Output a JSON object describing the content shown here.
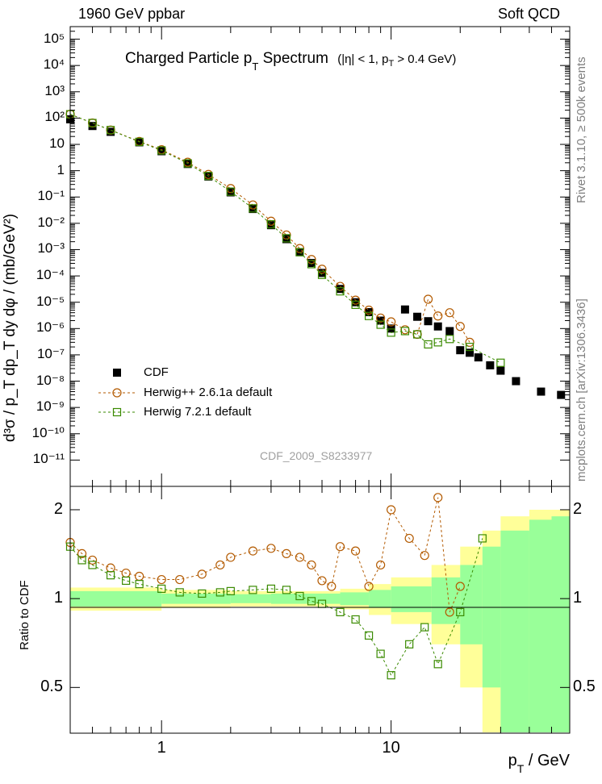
{
  "header": {
    "left": "1960 GeV ppbar",
    "right": "Soft QCD"
  },
  "side_labels": {
    "rivet": "Rivet 3.1.10, ≥ 500k events",
    "mcplots": "mcplots.cern.ch [arXiv:1306.3436]"
  },
  "colors": {
    "cdf": "#000000",
    "herwigpp": "#b35a00",
    "herwig7": "#3a8a00",
    "band_inner": "#99ff99",
    "band_outer": "#ffff99",
    "watermark": "#a0a0a0"
  },
  "chart_data": [
    {
      "type": "scatter",
      "title": "Charged Particle p_T Spectrum",
      "title_parts": {
        "main": "Charged Particle p",
        "sub": "T",
        "after": " Spectrum",
        "cut_a": "(|η| < 1, p",
        "cut_sub": "T",
        "cut_b": " > 0.4 GeV)"
      },
      "watermark": "CDF_2009_S8233977",
      "ylabel": "d³σ / p_T dp_T dy dφ / (mb/GeV²)",
      "xscale": "log",
      "yscale": "log",
      "xlim": [
        0.4,
        60
      ],
      "ylim": [
        1e-12,
        300000
      ],
      "ytick_exponents": [
        -11,
        -10,
        -9,
        -8,
        -7,
        -6,
        -5,
        -4,
        -3,
        -2,
        -1,
        0,
        1,
        2,
        3,
        4,
        5
      ],
      "ytick_labels": [
        "10⁻¹¹",
        "10⁻¹⁰",
        "10⁻⁹",
        "10⁻⁸",
        "10⁻⁷",
        "10⁻⁶",
        "10⁻⁵",
        "10⁻⁴",
        "10⁻³",
        "10⁻²",
        "10⁻¹",
        "1",
        "10",
        "10²",
        "10³",
        "10⁴",
        "10⁵"
      ],
      "legend": [
        {
          "label": "CDF",
          "marker": "filled-square"
        },
        {
          "label": "Herwig++ 2.6.1a default",
          "marker": "open-circle"
        },
        {
          "label": "Herwig 7.2.1 default",
          "marker": "open-square"
        }
      ],
      "series": [
        {
          "name": "CDF",
          "x": [
            0.4,
            0.5,
            0.6,
            0.8,
            1.0,
            1.3,
            1.6,
            2.0,
            2.5,
            3.0,
            3.5,
            4.0,
            4.5,
            5.0,
            6.0,
            7.0,
            8.0,
            9.0,
            10.0,
            11.5,
            13.0,
            14.5,
            16.0,
            18.0,
            20.0,
            22.0,
            24.0,
            27.0,
            30.0,
            35.0,
            45.0,
            55.0
          ],
          "y": [
            90,
            50,
            30,
            12,
            5.5,
            1.8,
            0.6,
            0.15,
            0.035,
            0.0085,
            0.0025,
            0.0008,
            0.00031,
            0.00013,
            3.2e-05,
            1e-05,
            4.2e-06,
            2e-06,
            1e-06,
            5.3e-06,
            2.8e-06,
            1.9e-06,
            1.2e-06,
            8e-07,
            1.5e-07,
            1.2e-07,
            8e-08,
            4e-08,
            2.5e-08,
            1e-08,
            4e-09,
            3e-09
          ]
        },
        {
          "name": "Herwig++ 2.6.1a default",
          "x": [
            0.4,
            0.5,
            0.6,
            0.8,
            1.0,
            1.3,
            1.6,
            2.0,
            2.5,
            3.0,
            3.5,
            4.0,
            4.5,
            5.0,
            6.0,
            7.0,
            8.0,
            9.0,
            10.0,
            11.5,
            13.0,
            14.5,
            16.0,
            18.0,
            20.0,
            22.0
          ],
          "y": [
            140,
            65,
            35,
            13,
            6.3,
            2.1,
            0.72,
            0.21,
            0.05,
            0.012,
            0.0036,
            0.0011,
            0.00042,
            0.00018,
            4e-05,
            1.2e-05,
            5e-06,
            2.5e-06,
            1.8e-06,
            9e-07,
            6e-07,
            1.3e-05,
            3e-06,
            4e-06,
            1.2e-06,
            3e-07
          ]
        },
        {
          "name": "Herwig 7.2.1 default",
          "x": [
            0.4,
            0.5,
            0.6,
            0.8,
            1.0,
            1.3,
            1.6,
            2.0,
            2.5,
            3.0,
            3.5,
            4.0,
            4.5,
            5.0,
            6.0,
            7.0,
            8.0,
            9.0,
            10.0,
            11.5,
            13.0,
            14.5,
            16.0,
            18.0,
            22.0,
            30.0
          ],
          "y": [
            140,
            65,
            35,
            12.5,
            5.9,
            1.9,
            0.63,
            0.16,
            0.037,
            0.0092,
            0.0027,
            0.0008,
            0.00028,
            0.00011,
            2.6e-05,
            8e-06,
            3e-06,
            1.4e-06,
            7e-07,
            8e-07,
            6e-07,
            2.5e-07,
            3e-07,
            4e-07,
            2e-07,
            5e-08
          ]
        }
      ]
    },
    {
      "type": "scatter",
      "title": "Ratio to CDF",
      "xlabel": "p_T / GeV",
      "xlabel_parts": {
        "main": "p",
        "sub": "T",
        "after": " / GeV"
      },
      "ylabel": "Ratio to CDF",
      "xscale": "log",
      "yscale": "log",
      "xlim": [
        0.4,
        60
      ],
      "ylim": [
        0.35,
        2.4
      ],
      "xtick_values": [
        1,
        10
      ],
      "xtick_labels": [
        "1",
        "10"
      ],
      "ytick_values": [
        0.5,
        1,
        2
      ],
      "ytick_labels": [
        "0.5",
        "1",
        "2"
      ],
      "band": {
        "x": [
          0.4,
          1,
          2,
          3,
          4,
          5,
          6,
          8,
          10,
          15,
          20,
          25,
          30,
          40,
          50,
          60
        ],
        "inner": [
          0.06,
          0.04,
          0.035,
          0.04,
          0.04,
          0.04,
          0.05,
          0.07,
          0.1,
          0.18,
          0.3,
          0.5,
          0.7,
          0.85,
          0.9,
          0.9
        ],
        "outer": [
          0.09,
          0.07,
          0.06,
          0.06,
          0.06,
          0.06,
          0.08,
          0.12,
          0.18,
          0.3,
          0.5,
          0.7,
          0.9,
          1.0,
          1.0,
          1.0
        ]
      },
      "series": [
        {
          "name": "Herwig++ 2.6.1a default",
          "x": [
            0.4,
            0.45,
            0.5,
            0.6,
            0.7,
            0.8,
            1.0,
            1.2,
            1.5,
            1.8,
            2.0,
            2.5,
            3.0,
            3.5,
            4.0,
            4.5,
            5.0,
            5.5,
            6.0,
            7.0,
            8.0,
            9.0,
            10.0,
            12.0,
            14.0,
            16.0,
            18.0,
            20.0
          ],
          "y": [
            1.55,
            1.42,
            1.35,
            1.27,
            1.22,
            1.19,
            1.16,
            1.16,
            1.21,
            1.3,
            1.38,
            1.45,
            1.48,
            1.42,
            1.38,
            1.3,
            1.15,
            1.1,
            1.5,
            1.45,
            1.1,
            1.3,
            2.0,
            1.6,
            1.4,
            2.2,
            0.9,
            1.1
          ]
        },
        {
          "name": "Herwig 7.2.1 default",
          "x": [
            0.4,
            0.45,
            0.5,
            0.6,
            0.7,
            0.8,
            1.0,
            1.2,
            1.5,
            1.8,
            2.0,
            2.5,
            3.0,
            3.5,
            4.0,
            4.5,
            5.0,
            6.0,
            7.0,
            8.0,
            9.0,
            10.0,
            12.0,
            14.0,
            16.0,
            20.0,
            25.0
          ],
          "y": [
            1.5,
            1.35,
            1.3,
            1.2,
            1.15,
            1.12,
            1.08,
            1.05,
            1.04,
            1.05,
            1.06,
            1.07,
            1.08,
            1.07,
            1.02,
            0.98,
            0.96,
            0.9,
            0.85,
            0.75,
            0.65,
            0.55,
            0.7,
            0.8,
            0.6,
            0.9,
            1.6
          ]
        }
      ]
    }
  ]
}
